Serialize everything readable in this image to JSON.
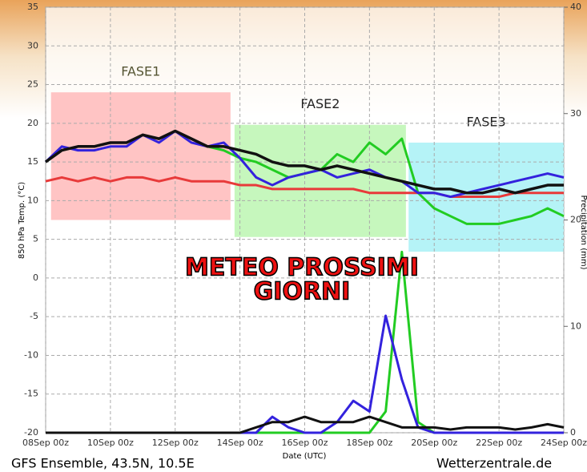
{
  "chart_data": {
    "type": "line",
    "ylabel": "850 hPa Temp. (°C)",
    "y2label": "Precipitation (mm)",
    "xlabel": "Date (UTC)",
    "footer_left": "GFS Ensemble, 43.5N, 10.5E",
    "footer_right": "Wetterzentrale.de",
    "overlay_title": [
      "METEO PROSSIMI",
      "GIORNI"
    ],
    "xlim": [
      0,
      384
    ],
    "xticks": [
      {
        "value": 0,
        "label": "08Sep 00z"
      },
      {
        "value": 48,
        "label": "10Sep 00z"
      },
      {
        "value": 96,
        "label": "12Sep 00z"
      },
      {
        "value": 144,
        "label": "14Sep 00z"
      },
      {
        "value": 192,
        "label": "16Sep 00z"
      },
      {
        "value": 240,
        "label": "18Sep 00z"
      },
      {
        "value": 288,
        "label": "20Sep 00z"
      },
      {
        "value": 336,
        "label": "22Sep 00z"
      },
      {
        "value": 384,
        "label": "24Sep 00z"
      }
    ],
    "ylim": [
      -20,
      35
    ],
    "yticks": [
      -20,
      -15,
      -10,
      -5,
      0,
      5,
      10,
      15,
      20,
      25,
      30,
      35
    ],
    "y2lim": [
      0,
      40
    ],
    "y2ticks": [
      0,
      10,
      20,
      30,
      40
    ],
    "grid": true,
    "phases": [
      {
        "label": "FASE1",
        "color": "#ffc4c4",
        "xlim": [
          4,
          137
        ],
        "ylim": [
          7.5,
          24
        ]
      },
      {
        "label": "FASE2",
        "color": "#c6f7bd",
        "xlim": [
          140,
          267
        ],
        "ylim": [
          5.3,
          19.8
        ]
      },
      {
        "label": "FASE3",
        "color": "#b5f3f7",
        "xlim": [
          269,
          384
        ],
        "ylim": [
          3.4,
          17.5
        ]
      }
    ],
    "x": [
      0,
      12,
      24,
      36,
      48,
      60,
      72,
      84,
      96,
      108,
      120,
      132,
      144,
      156,
      168,
      180,
      192,
      204,
      216,
      228,
      240,
      252,
      264,
      276,
      288,
      300,
      312,
      324,
      336,
      348,
      360,
      372,
      384
    ],
    "series": [
      {
        "color": "#e83a3a",
        "width": 3,
        "values": [
          12.5,
          13,
          12.5,
          13,
          12.5,
          13,
          13,
          12.5,
          13,
          12.5,
          12.5,
          12.5,
          12,
          12,
          11.5,
          11.5,
          11.5,
          11.5,
          11.5,
          11.5,
          11,
          11,
          11,
          11,
          11,
          10.5,
          10.5,
          10.5,
          10.5,
          11,
          11,
          11,
          11
        ]
      },
      {
        "color": "#22cc22",
        "width": 3,
        "values": [
          15,
          16.5,
          17,
          17,
          17.5,
          17.5,
          18.5,
          18,
          19,
          18,
          17,
          16.5,
          15.5,
          15,
          14,
          13,
          13.5,
          14,
          16,
          15,
          17.5,
          16,
          18,
          11,
          9,
          8,
          7,
          7,
          7,
          7.5,
          8,
          9,
          8
        ]
      },
      {
        "color": "#3322dd",
        "width": 3,
        "values": [
          15,
          17,
          16.5,
          16.5,
          17,
          17,
          18.5,
          17.5,
          19,
          17.5,
          17,
          17.5,
          15.5,
          13,
          12,
          13,
          13.5,
          14,
          13,
          13.5,
          14,
          13,
          12.5,
          11,
          11,
          10.5,
          11,
          11.5,
          12,
          12.5,
          13,
          13.5,
          13
        ]
      },
      {
        "color": "#111111",
        "width": 3.5,
        "values": [
          15,
          16.5,
          17,
          17,
          17.5,
          17.5,
          18.5,
          18,
          19,
          18,
          17,
          17,
          16.5,
          16,
          15,
          14.5,
          14.5,
          14,
          14.5,
          14,
          13.5,
          13,
          12.5,
          12,
          11.5,
          11.5,
          11,
          11,
          11.5,
          11,
          11.5,
          12,
          12
        ]
      },
      {
        "color": "#22cc22",
        "width": 3,
        "axis": "y2",
        "values": [
          0,
          0,
          0,
          0,
          0,
          0,
          0,
          0,
          0,
          0,
          0,
          0,
          0,
          0,
          0,
          0,
          0,
          0,
          0,
          0,
          0,
          2,
          17,
          1,
          0,
          0,
          0,
          0,
          0,
          0,
          0,
          0,
          0
        ]
      },
      {
        "color": "#3322dd",
        "width": 3,
        "axis": "y2",
        "values": [
          0,
          0,
          0,
          0,
          0,
          0,
          0,
          0,
          0,
          0,
          0,
          0,
          0,
          0,
          1.5,
          0.5,
          0,
          0,
          1,
          3,
          2,
          11,
          5,
          0.5,
          0,
          0,
          0,
          0,
          0,
          0,
          0,
          0,
          0
        ]
      },
      {
        "color": "#111111",
        "width": 3,
        "axis": "y2",
        "values": [
          0,
          0,
          0,
          0,
          0,
          0,
          0,
          0,
          0,
          0,
          0,
          0,
          0,
          0.5,
          1,
          1,
          1.5,
          1,
          1,
          1,
          1.5,
          1,
          0.5,
          0.5,
          0.5,
          0.3,
          0.5,
          0.5,
          0.5,
          0.3,
          0.5,
          0.8,
          0.5
        ]
      }
    ]
  }
}
